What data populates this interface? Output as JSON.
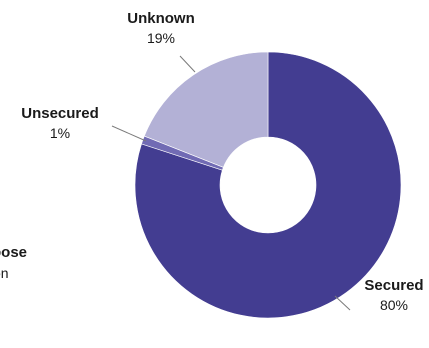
{
  "chart_data": {
    "type": "pie",
    "variant": "donut",
    "title": "",
    "legend": "none",
    "slices": [
      {
        "label": "Secured",
        "value": 80,
        "value_label": "80%",
        "color": "#433d91"
      },
      {
        "label": "Unsecured",
        "value": 1,
        "value_label": "1%",
        "color": "#716bb4"
      },
      {
        "label": "Unknown",
        "value": 19,
        "value_label": "19%",
        "color": "#b3b1d6"
      }
    ],
    "cut_off_label": {
      "label": "pose",
      "value_label": "on"
    }
  }
}
